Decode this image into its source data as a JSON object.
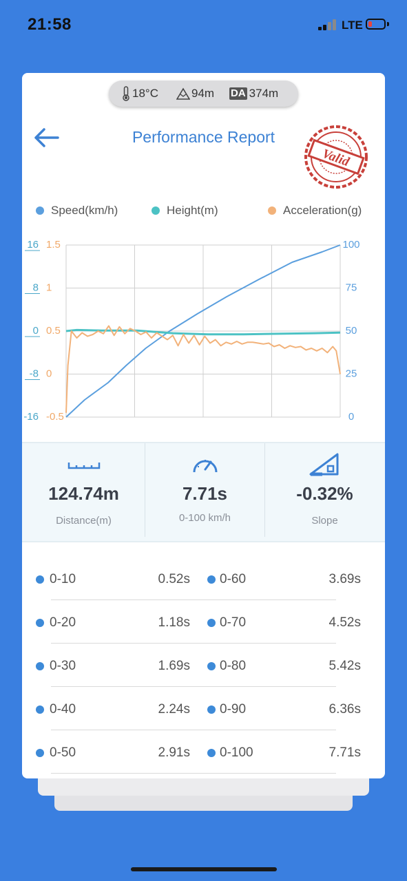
{
  "status_bar": {
    "time": "21:58",
    "network": "LTE",
    "battery_level": 0.22
  },
  "conditions": {
    "temperature": "18°C",
    "altitude": "94m",
    "density_altitude_badge": "DA",
    "density_altitude": "374m"
  },
  "header": {
    "title": "Performance Report",
    "stamp_text": "Valid"
  },
  "legend": [
    {
      "label": "Speed(km/h)",
      "color": "#5b9fde"
    },
    {
      "label": "Height(m)",
      "color": "#4cc2c4"
    },
    {
      "label": "Acceleration(g)",
      "color": "#f2b27a"
    }
  ],
  "chart_data": {
    "type": "line",
    "x": [
      0,
      0.5,
      1,
      1.5,
      2,
      2.5,
      3,
      3.5,
      4,
      4.5,
      5,
      5.5,
      6,
      6.5,
      7,
      7.5,
      7.71
    ],
    "y_axes": {
      "height_ticks": [
        "16",
        "8",
        "0",
        "-8",
        "-16"
      ],
      "acceleration_ticks": [
        "1.5",
        "1",
        "0.5",
        "0",
        "-0.5"
      ],
      "speed_ticks": [
        "100",
        "75",
        "50",
        "25",
        "0"
      ]
    },
    "height_range": [
      -16,
      16
    ],
    "acceleration_range": [
      -0.5,
      1.5
    ],
    "speed_range": [
      0,
      100
    ],
    "grid": true,
    "series": [
      {
        "name": "Speed(km/h)",
        "color": "#5b9fde",
        "x": [
          0,
          0.52,
          1.18,
          1.69,
          2.24,
          2.91,
          3.69,
          4.52,
          5.42,
          6.36,
          7.2,
          7.71
        ],
        "y": [
          0,
          10,
          20,
          30,
          40,
          50,
          60,
          70,
          80,
          90,
          96,
          100
        ]
      },
      {
        "name": "Height(m)",
        "color": "#4cc2c4",
        "x": [
          0,
          0.3,
          1,
          2,
          3,
          4,
          5,
          6,
          7,
          7.71
        ],
        "y": [
          0,
          0.2,
          0.1,
          0.1,
          -0.4,
          -0.6,
          -0.6,
          -0.5,
          -0.4,
          -0.3
        ]
      },
      {
        "name": "Acceleration(g)",
        "color": "#f2b27a",
        "x": [
          0,
          0.05,
          0.15,
          0.3,
          0.45,
          0.6,
          0.75,
          0.9,
          1.05,
          1.2,
          1.35,
          1.5,
          1.65,
          1.8,
          1.95,
          2.1,
          2.25,
          2.4,
          2.55,
          2.7,
          2.85,
          3.0,
          3.15,
          3.3,
          3.45,
          3.6,
          3.75,
          3.9,
          4.05,
          4.2,
          4.35,
          4.5,
          4.65,
          4.8,
          4.95,
          5.1,
          5.25,
          5.4,
          5.55,
          5.7,
          5.85,
          6.0,
          6.15,
          6.3,
          6.45,
          6.6,
          6.75,
          6.9,
          7.05,
          7.2,
          7.35,
          7.5,
          7.6,
          7.71
        ],
        "y": [
          -0.45,
          0.1,
          0.5,
          0.42,
          0.48,
          0.44,
          0.46,
          0.5,
          0.47,
          0.56,
          0.45,
          0.55,
          0.47,
          0.53,
          0.5,
          0.46,
          0.49,
          0.42,
          0.48,
          0.44,
          0.4,
          0.45,
          0.33,
          0.46,
          0.36,
          0.45,
          0.34,
          0.44,
          0.36,
          0.4,
          0.33,
          0.37,
          0.35,
          0.38,
          0.35,
          0.37,
          0.37,
          0.36,
          0.35,
          0.36,
          0.32,
          0.34,
          0.3,
          0.33,
          0.31,
          0.32,
          0.28,
          0.3,
          0.27,
          0.3,
          0.25,
          0.32,
          0.27,
          0.0
        ]
      }
    ]
  },
  "stats": [
    {
      "icon": "ruler-icon",
      "value": "124.74m",
      "label": "Distance(m)"
    },
    {
      "icon": "speedometer-icon",
      "value": "7.71s",
      "label": "0-100 km/h"
    },
    {
      "icon": "slope-icon",
      "value": "-0.32%",
      "label": "Slope"
    }
  ],
  "splits": [
    {
      "left_label": "0-10",
      "left_time": "0.52s",
      "right_label": "0-60",
      "right_time": "3.69s"
    },
    {
      "left_label": "0-20",
      "left_time": "1.18s",
      "right_label": "0-70",
      "right_time": "4.52s"
    },
    {
      "left_label": "0-30",
      "left_time": "1.69s",
      "right_label": "0-80",
      "right_time": "5.42s"
    },
    {
      "left_label": "0-40",
      "left_time": "2.24s",
      "right_label": "0-90",
      "right_time": "6.36s"
    },
    {
      "left_label": "0-50",
      "left_time": "2.91s",
      "right_label": "0-100",
      "right_time": "7.71s"
    }
  ]
}
